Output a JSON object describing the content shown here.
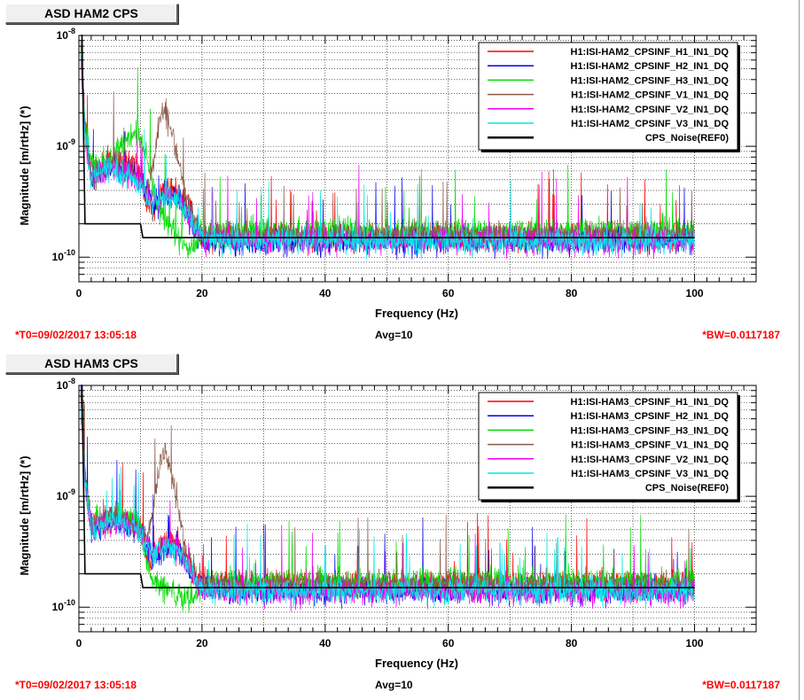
{
  "charts": [
    {
      "title": "ASD HAM2 CPS",
      "footer": {
        "t0": "*T0=09/02/2017 13:05:18",
        "avg": "Avg=10",
        "bw": "*BW=0.0117187"
      }
    },
    {
      "title": "ASD HAM3 CPS",
      "footer": {
        "t0": "*T0=09/02/2017 13:05:18",
        "avg": "Avg=10",
        "bw": "*BW=0.0117187"
      }
    }
  ],
  "chart_data": [
    {
      "type": "line",
      "title": "ASD HAM2 CPS",
      "xlabel": "Frequency (Hz)",
      "ylabel": "Magnitude [m/rtHz] (*)",
      "xlim": [
        0,
        110
      ],
      "ylim": [
        6e-11,
        1e-08
      ],
      "ylog": true,
      "grid": true,
      "legend_position": "top-right",
      "x_ticks": [
        0,
        20,
        40,
        60,
        80,
        100
      ],
      "y_ticks": [
        {
          "v": 1e-08,
          "exp": "-8"
        },
        {
          "v": 1e-09,
          "exp": "-9"
        },
        {
          "v": 1e-10,
          "exp": "-10"
        }
      ],
      "series": [
        {
          "name": "H1:ISI-HAM2_CPSINF_H1_IN1_DQ",
          "color": "#ff0000",
          "x": [
            0.3,
            1,
            2,
            4,
            6,
            8,
            10,
            11,
            12,
            13,
            14,
            15,
            16,
            17,
            18,
            19,
            20,
            25,
            30,
            40,
            50,
            60,
            70,
            80,
            90,
            100
          ],
          "y": [
            9e-09,
            1.5e-09,
            6e-10,
            7e-10,
            8e-10,
            7e-10,
            6e-10,
            3e-10,
            2.6e-10,
            3.5e-10,
            4e-10,
            4.5e-10,
            4e-10,
            3.5e-10,
            2.6e-10,
            2e-10,
            1.5e-10,
            1.5e-10,
            1.5e-10,
            1.5e-10,
            1.5e-10,
            1.5e-10,
            1.5e-10,
            1.5e-10,
            1.5e-10,
            1.5e-10
          ]
        },
        {
          "name": "H1:ISI-HAM2_CPSINF_H2_IN1_DQ",
          "color": "#0000ee",
          "x": [
            0.3,
            1,
            2,
            4,
            6,
            8,
            10,
            12,
            14,
            16,
            18,
            20,
            25,
            30,
            40,
            50,
            60,
            70,
            80,
            90,
            100
          ],
          "y": [
            8e-09,
            1.4e-09,
            5e-10,
            6e-10,
            6.5e-10,
            6e-10,
            5e-10,
            2.8e-10,
            3.5e-10,
            3.5e-10,
            2.2e-10,
            1.4e-10,
            1.35e-10,
            1.4e-10,
            1.4e-10,
            1.4e-10,
            1.4e-10,
            1.4e-10,
            1.4e-10,
            1.4e-10,
            1.4e-10
          ]
        },
        {
          "name": "H1:ISI-HAM2_CPSINF_H3_IN1_DQ",
          "color": "#00dd00",
          "x": [
            0.3,
            1,
            2,
            4,
            6,
            8,
            9,
            10,
            11,
            12,
            13,
            14,
            15,
            16,
            17,
            18,
            19,
            20,
            25,
            30,
            40,
            50,
            60,
            70,
            80,
            90,
            100
          ],
          "y": [
            8e-09,
            1.8e-09,
            7e-10,
            7e-10,
            9e-10,
            1.1e-09,
            1.4e-09,
            1.2e-09,
            8e-10,
            4e-10,
            3e-10,
            2.2e-10,
            1.8e-10,
            1.5e-10,
            1.3e-10,
            1.2e-10,
            1.3e-10,
            1.6e-10,
            1.7e-10,
            1.7e-10,
            1.7e-10,
            1.7e-10,
            1.7e-10,
            1.7e-10,
            1.7e-10,
            1.7e-10,
            1.7e-10
          ]
        },
        {
          "name": "H1:ISI-HAM2_CPSINF_V1_IN1_DQ",
          "color": "#8b5a4a",
          "x": [
            0.3,
            1,
            2,
            4,
            6,
            8,
            10,
            11,
            12,
            13,
            14,
            15,
            16,
            17,
            18,
            19,
            20,
            25,
            30,
            40,
            50,
            60,
            70,
            80,
            90,
            100
          ],
          "y": [
            7e-09,
            1.5e-09,
            5e-10,
            6e-10,
            7e-10,
            6e-10,
            5e-10,
            4e-10,
            6e-10,
            1.6e-09,
            2.2e-09,
            1.4e-09,
            8e-10,
            4e-10,
            2.8e-10,
            2e-10,
            1.7e-10,
            1.6e-10,
            1.6e-10,
            1.6e-10,
            1.6e-10,
            1.6e-10,
            1.6e-10,
            1.6e-10,
            1.6e-10,
            1.6e-10
          ]
        },
        {
          "name": "H1:ISI-HAM2_CPSINF_V2_IN1_DQ",
          "color": "#ee00ee",
          "x": [
            0.3,
            1,
            2,
            4,
            6,
            8,
            10,
            12,
            14,
            16,
            18,
            20,
            25,
            30,
            40,
            50,
            60,
            70,
            80,
            90,
            100
          ],
          "y": [
            7e-09,
            1.3e-09,
            5e-10,
            6e-10,
            6e-10,
            5.5e-10,
            4.5e-10,
            3e-10,
            3.8e-10,
            3.4e-10,
            2.2e-10,
            1.45e-10,
            1.4e-10,
            1.4e-10,
            1.4e-10,
            1.4e-10,
            1.4e-10,
            1.4e-10,
            1.4e-10,
            1.4e-10,
            1.4e-10
          ]
        },
        {
          "name": "H1:ISI-HAM2_CPSINF_V3_IN1_DQ",
          "color": "#00e8e8",
          "x": [
            0.3,
            1,
            2,
            4,
            6,
            8,
            10,
            12,
            14,
            16,
            18,
            20,
            25,
            30,
            40,
            50,
            60,
            70,
            80,
            90,
            100
          ],
          "y": [
            7e-09,
            1.3e-09,
            5e-10,
            6e-10,
            6e-10,
            5.5e-10,
            4.5e-10,
            3e-10,
            3.6e-10,
            3.4e-10,
            2.2e-10,
            1.45e-10,
            1.4e-10,
            1.4e-10,
            1.4e-10,
            1.4e-10,
            1.4e-10,
            1.4e-10,
            1.4e-10,
            1.4e-10,
            1.4e-10
          ]
        },
        {
          "name": "CPS_Noise(REF0)",
          "color": "#000000",
          "x": [
            0.3,
            0.5,
            1,
            10,
            10.4,
            11,
            20,
            100
          ],
          "y": [
            1e-08,
            1e-08,
            2e-10,
            2e-10,
            1.5e-10,
            1.5e-10,
            1.5e-10,
            1.5e-10
          ]
        }
      ]
    },
    {
      "type": "line",
      "title": "ASD HAM3 CPS",
      "xlabel": "Frequency (Hz)",
      "ylabel": "Magnitude [m/rtHz] (*)",
      "xlim": [
        0,
        110
      ],
      "ylim": [
        6e-11,
        1e-08
      ],
      "ylog": true,
      "grid": true,
      "legend_position": "top-right",
      "x_ticks": [
        0,
        20,
        40,
        60,
        80,
        100
      ],
      "y_ticks": [
        {
          "v": 1e-08,
          "exp": "-8"
        },
        {
          "v": 1e-09,
          "exp": "-9"
        },
        {
          "v": 1e-10,
          "exp": "-10"
        }
      ],
      "series": [
        {
          "name": "H1:ISI-HAM3_CPSINF_H1_IN1_DQ",
          "color": "#ff0000",
          "x": [
            0.3,
            1,
            2,
            4,
            6,
            8,
            10,
            11,
            12,
            13,
            14,
            15,
            16,
            17,
            18,
            19,
            20,
            25,
            30,
            40,
            50,
            60,
            70,
            80,
            90,
            100
          ],
          "y": [
            9e-09,
            1.5e-09,
            5.5e-10,
            6e-10,
            6.5e-10,
            6e-10,
            5e-10,
            2.8e-10,
            2.6e-10,
            3.5e-10,
            3.8e-10,
            4e-10,
            3.8e-10,
            3e-10,
            2.4e-10,
            1.9e-10,
            1.6e-10,
            1.6e-10,
            1.6e-10,
            1.6e-10,
            1.6e-10,
            1.6e-10,
            1.6e-10,
            1.6e-10,
            1.6e-10,
            1.6e-10
          ]
        },
        {
          "name": "H1:ISI-HAM3_CPSINF_H2_IN1_DQ",
          "color": "#0000ee",
          "x": [
            0.3,
            1,
            2,
            4,
            6,
            8,
            10,
            12,
            14,
            16,
            18,
            20,
            25,
            30,
            40,
            50,
            60,
            70,
            80,
            90,
            100
          ],
          "y": [
            8e-09,
            1.4e-09,
            5e-10,
            5.5e-10,
            6e-10,
            5.5e-10,
            4.8e-10,
            2.8e-10,
            3.4e-10,
            3.3e-10,
            2.2e-10,
            1.45e-10,
            1.4e-10,
            1.4e-10,
            1.4e-10,
            1.4e-10,
            1.4e-10,
            1.4e-10,
            1.4e-10,
            1.4e-10,
            1.4e-10
          ]
        },
        {
          "name": "H1:ISI-HAM3_CPSINF_H3_IN1_DQ",
          "color": "#00dd00",
          "x": [
            0.3,
            1,
            2,
            4,
            6,
            8,
            10,
            11,
            12,
            13,
            14,
            15,
            16,
            17,
            18,
            19,
            20,
            25,
            30,
            40,
            50,
            60,
            70,
            80,
            90,
            100
          ],
          "y": [
            8e-09,
            1.6e-09,
            6e-10,
            6e-10,
            7e-10,
            6.5e-10,
            5.5e-10,
            2.5e-10,
            1.8e-10,
            1.6e-10,
            1.5e-10,
            1.4e-10,
            1.3e-10,
            1.2e-10,
            1.2e-10,
            1.3e-10,
            1.6e-10,
            1.7e-10,
            1.7e-10,
            1.7e-10,
            1.7e-10,
            1.7e-10,
            1.7e-10,
            1.7e-10,
            1.7e-10,
            1.7e-10
          ]
        },
        {
          "name": "H1:ISI-HAM3_CPSINF_V1_IN1_DQ",
          "color": "#8b5a4a",
          "x": [
            0.3,
            1,
            2,
            4,
            6,
            8,
            10,
            11,
            12,
            13,
            14,
            15,
            16,
            17,
            18,
            19,
            20,
            25,
            30,
            40,
            50,
            60,
            70,
            80,
            90,
            100
          ],
          "y": [
            7e-09,
            1.5e-09,
            5e-10,
            6e-10,
            7e-10,
            6e-10,
            5e-10,
            4e-10,
            7e-10,
            1.8e-09,
            2.6e-09,
            1.6e-09,
            9e-10,
            4e-10,
            2.6e-10,
            2e-10,
            1.7e-10,
            1.6e-10,
            1.6e-10,
            1.6e-10,
            1.6e-10,
            1.6e-10,
            1.6e-10,
            1.6e-10,
            1.6e-10,
            1.6e-10
          ]
        },
        {
          "name": "H1:ISI-HAM3_CPSINF_V2_IN1_DQ",
          "color": "#ee00ee",
          "x": [
            0.3,
            1,
            2,
            4,
            6,
            8,
            10,
            12,
            14,
            16,
            18,
            20,
            25,
            30,
            40,
            50,
            60,
            70,
            80,
            90,
            100
          ],
          "y": [
            7e-09,
            1.3e-09,
            5e-10,
            5.5e-10,
            6e-10,
            5.5e-10,
            4.5e-10,
            3e-10,
            3.6e-10,
            3.3e-10,
            2.2e-10,
            1.4e-10,
            1.35e-10,
            1.35e-10,
            1.35e-10,
            1.35e-10,
            1.35e-10,
            1.35e-10,
            1.35e-10,
            1.35e-10,
            1.35e-10
          ]
        },
        {
          "name": "H1:ISI-HAM3_CPSINF_V3_IN1_DQ",
          "color": "#00e8e8",
          "x": [
            0.3,
            1,
            2,
            4,
            6,
            8,
            10,
            12,
            14,
            16,
            18,
            20,
            25,
            30,
            40,
            50,
            60,
            70,
            80,
            90,
            100
          ],
          "y": [
            7e-09,
            1.3e-09,
            5e-10,
            5.5e-10,
            6e-10,
            5.5e-10,
            4.5e-10,
            3e-10,
            3.5e-10,
            3.3e-10,
            2.2e-10,
            1.45e-10,
            1.4e-10,
            1.4e-10,
            1.4e-10,
            1.4e-10,
            1.4e-10,
            1.4e-10,
            1.4e-10,
            1.4e-10,
            1.4e-10
          ]
        },
        {
          "name": "CPS_Noise(REF0)",
          "color": "#000000",
          "x": [
            0.3,
            0.5,
            1,
            10,
            10.4,
            11,
            20,
            100
          ],
          "y": [
            1e-08,
            1e-08,
            2e-10,
            2e-10,
            1.5e-10,
            1.5e-10,
            1.5e-10,
            1.5e-10
          ]
        }
      ]
    }
  ]
}
